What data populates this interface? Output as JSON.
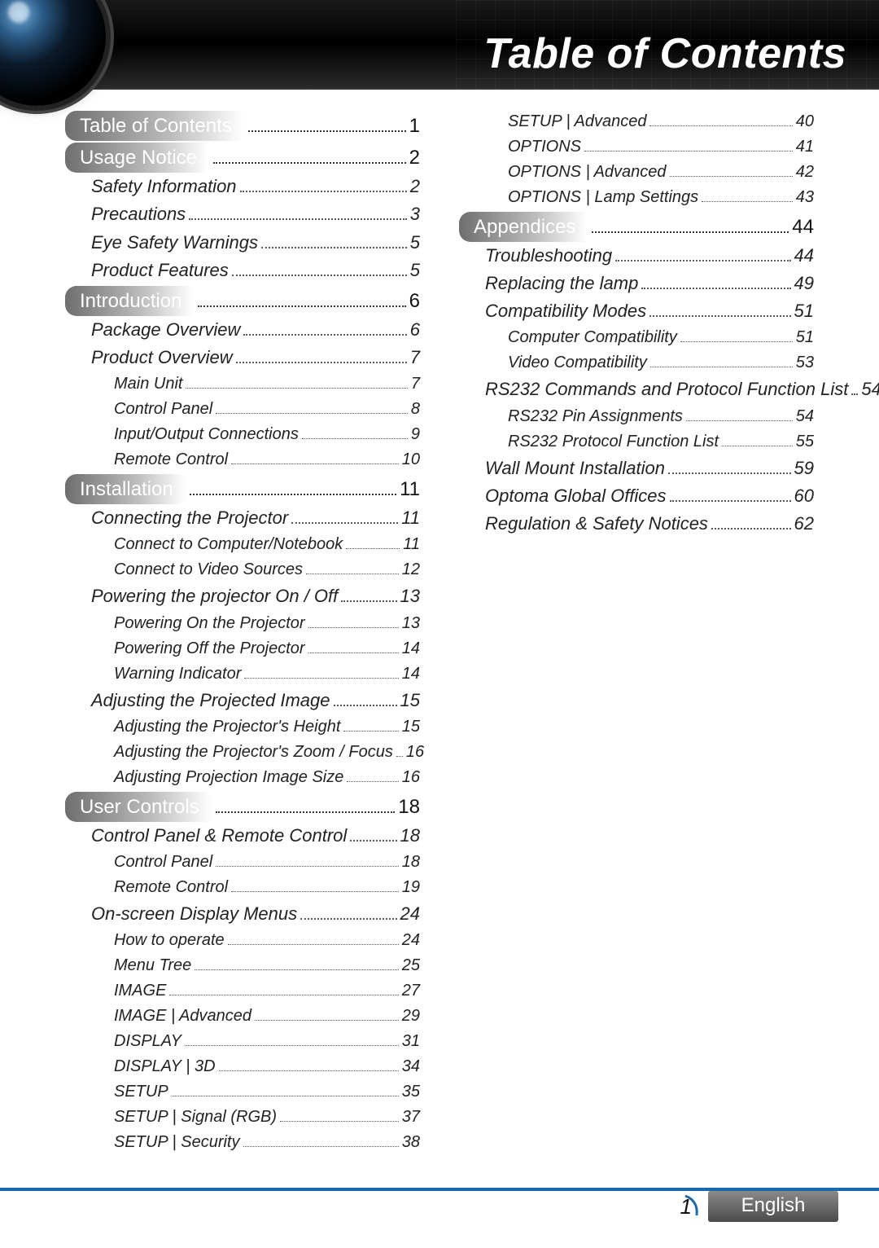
{
  "page_title": "Table of Contents",
  "section_title_bg_gradient": [
    "#6e6e6e",
    "#bdbdbd",
    "#ffffff"
  ],
  "accent_color": "#1a6aa8",
  "footer": {
    "page_number": "1",
    "language": "English"
  },
  "left": [
    {
      "level": 1,
      "label": "Table of Contents",
      "page": "1"
    },
    {
      "level": 1,
      "label": "Usage Notice",
      "page": "2"
    },
    {
      "level": 2,
      "label": "Safety Information",
      "page": "2"
    },
    {
      "level": 2,
      "label": "Precautions",
      "page": "3"
    },
    {
      "level": 2,
      "label": "Eye Safety Warnings",
      "page": "5"
    },
    {
      "level": 2,
      "label": "Product Features",
      "page": "5"
    },
    {
      "level": 1,
      "label": "Introduction",
      "page": "6"
    },
    {
      "level": 2,
      "label": "Package Overview",
      "page": "6"
    },
    {
      "level": 2,
      "label": "Product Overview",
      "page": "7"
    },
    {
      "level": 3,
      "label": "Main Unit",
      "page": "7"
    },
    {
      "level": 3,
      "label": "Control Panel",
      "page": "8"
    },
    {
      "level": 3,
      "label": "Input/Output Connections",
      "page": "9"
    },
    {
      "level": 3,
      "label": "Remote Control",
      "page": "10"
    },
    {
      "level": 1,
      "label": "Installation",
      "page": "11"
    },
    {
      "level": 2,
      "label": "Connecting the Projector",
      "page": "11"
    },
    {
      "level": 3,
      "label": "Connect to Computer/Notebook",
      "page": "11"
    },
    {
      "level": 3,
      "label": "Connect to Video Sources",
      "page": "12"
    },
    {
      "level": 2,
      "label": "Powering the projector On / Off",
      "page": "13"
    },
    {
      "level": 3,
      "label": "Powering On the Projector",
      "page": "13"
    },
    {
      "level": 3,
      "label": "Powering Off the Projector",
      "page": "14"
    },
    {
      "level": 3,
      "label": "Warning Indicator",
      "page": "14"
    },
    {
      "level": 2,
      "label": "Adjusting the Projected Image",
      "page": "15"
    },
    {
      "level": 3,
      "label": "Adjusting the Projector's Height",
      "page": "15"
    },
    {
      "level": 3,
      "label": "Adjusting the Projector's Zoom / Focus",
      "page": "16"
    },
    {
      "level": 3,
      "label": "Adjusting Projection Image Size",
      "page": "16"
    },
    {
      "level": 1,
      "label": "User Controls",
      "page": "18"
    },
    {
      "level": 2,
      "label": "Control Panel & Remote Control",
      "page": "18"
    },
    {
      "level": 3,
      "label": "Control Panel",
      "page": "18"
    },
    {
      "level": 3,
      "label": "Remote Control",
      "page": "19"
    },
    {
      "level": 2,
      "label": "On-screen Display Menus",
      "page": "24"
    },
    {
      "level": 3,
      "label": "How to operate",
      "page": "24"
    },
    {
      "level": 3,
      "label": "Menu Tree",
      "page": "25"
    },
    {
      "level": 3,
      "label": "IMAGE",
      "page": "27"
    },
    {
      "level": 3,
      "label": "IMAGE | Advanced",
      "page": "29"
    },
    {
      "level": 3,
      "label": "DISPLAY",
      "page": "31"
    },
    {
      "level": 3,
      "label": "DISPLAY | 3D",
      "page": "34"
    },
    {
      "level": 3,
      "label": "SETUP",
      "page": "35"
    },
    {
      "level": 3,
      "label": "SETUP | Signal (RGB)",
      "page": "37"
    },
    {
      "level": 3,
      "label": "SETUP | Security",
      "page": "38"
    }
  ],
  "right": [
    {
      "level": 3,
      "label": "SETUP | Advanced",
      "page": "40"
    },
    {
      "level": 3,
      "label": "OPTIONS",
      "page": "41"
    },
    {
      "level": 3,
      "label": "OPTIONS | Advanced",
      "page": "42"
    },
    {
      "level": 3,
      "label": "OPTIONS | Lamp Settings",
      "page": "43"
    },
    {
      "level": 1,
      "label": "Appendices",
      "page": "44"
    },
    {
      "level": 2,
      "label": "Troubleshooting",
      "page": "44"
    },
    {
      "level": 2,
      "label": "Replacing the lamp",
      "page": "49"
    },
    {
      "level": 2,
      "label": "Compatibility Modes",
      "page": "51"
    },
    {
      "level": 3,
      "label": "Computer Compatibility",
      "page": "51"
    },
    {
      "level": 3,
      "label": "Video Compatibility",
      "page": "53"
    },
    {
      "level": 2,
      "label": "RS232 Commands and Protocol Function List",
      "page": "54"
    },
    {
      "level": 3,
      "label": "RS232 Pin Assignments",
      "page": "54"
    },
    {
      "level": 3,
      "label": "RS232 Protocol Function List",
      "page": "55"
    },
    {
      "level": 2,
      "label": "Wall Mount Installation",
      "page": "59"
    },
    {
      "level": 2,
      "label": "Optoma Global Offices",
      "page": "60"
    },
    {
      "level": 2,
      "label": "Regulation & Safety Notices",
      "page": "62"
    }
  ]
}
